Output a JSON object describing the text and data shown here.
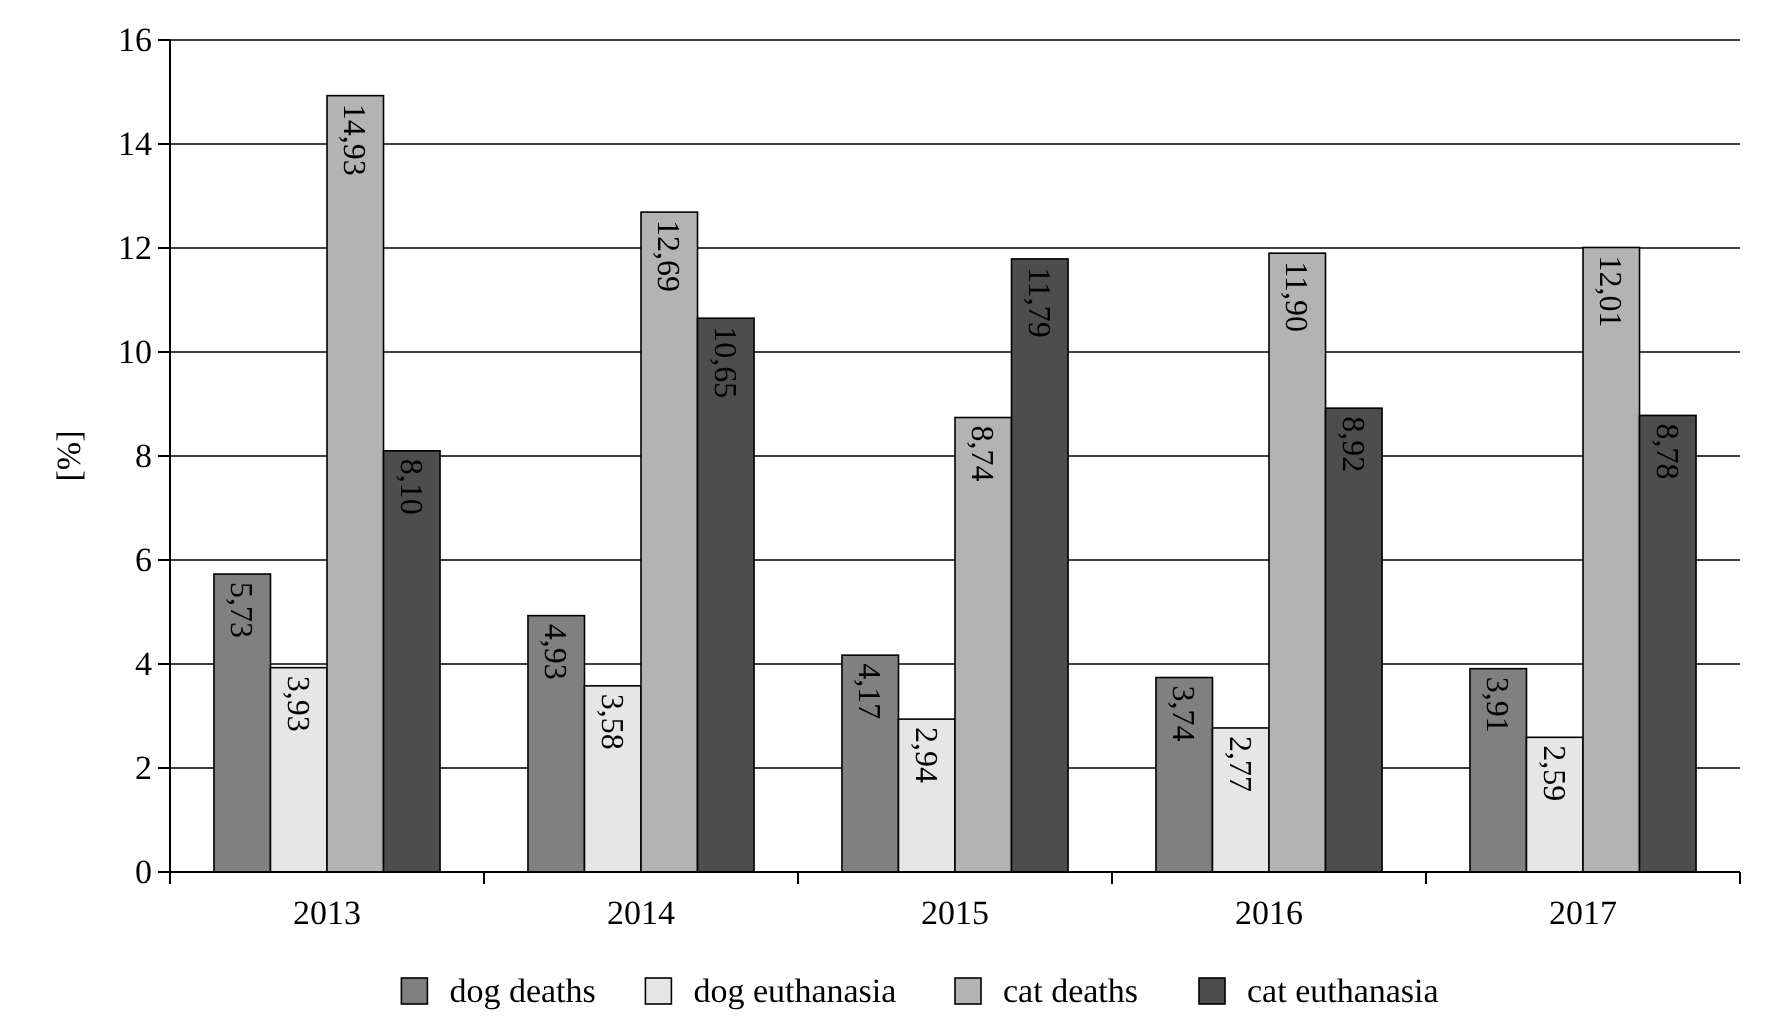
{
  "chart_data": {
    "type": "bar",
    "ylabel": "[%]",
    "categories": [
      "2013",
      "2014",
      "2015",
      "2016",
      "2017"
    ],
    "series": [
      {
        "name": "dog deaths",
        "color": "#808080",
        "values": [
          5.73,
          4.93,
          4.17,
          3.74,
          3.91
        ],
        "value_labels": [
          "5,73",
          "4,93",
          "4,17",
          "3,74",
          "3,91"
        ]
      },
      {
        "name": "dog euthanasia",
        "color": "#e6e6e6",
        "values": [
          3.93,
          3.58,
          2.94,
          2.77,
          2.59
        ],
        "value_labels": [
          "3,93",
          "3,58",
          "2,94",
          "2,77",
          "2,59"
        ]
      },
      {
        "name": "cat deaths",
        "color": "#b3b3b3",
        "values": [
          14.93,
          12.69,
          8.74,
          11.9,
          12.01
        ],
        "value_labels": [
          "14,93",
          "12,69",
          "8,74",
          "11,90",
          "12,01"
        ]
      },
      {
        "name": "cat euthanasia",
        "color": "#4d4d4d",
        "values": [
          8.1,
          10.65,
          11.79,
          8.92,
          8.78
        ],
        "value_labels": [
          "8,10",
          "10,65",
          "11,79",
          "8,92",
          "8,78"
        ]
      }
    ],
    "ylim": [
      0,
      16
    ],
    "yticks": [
      0,
      2,
      4,
      6,
      8,
      10,
      12,
      14,
      16
    ],
    "grid": "y",
    "legend": "bottom"
  }
}
